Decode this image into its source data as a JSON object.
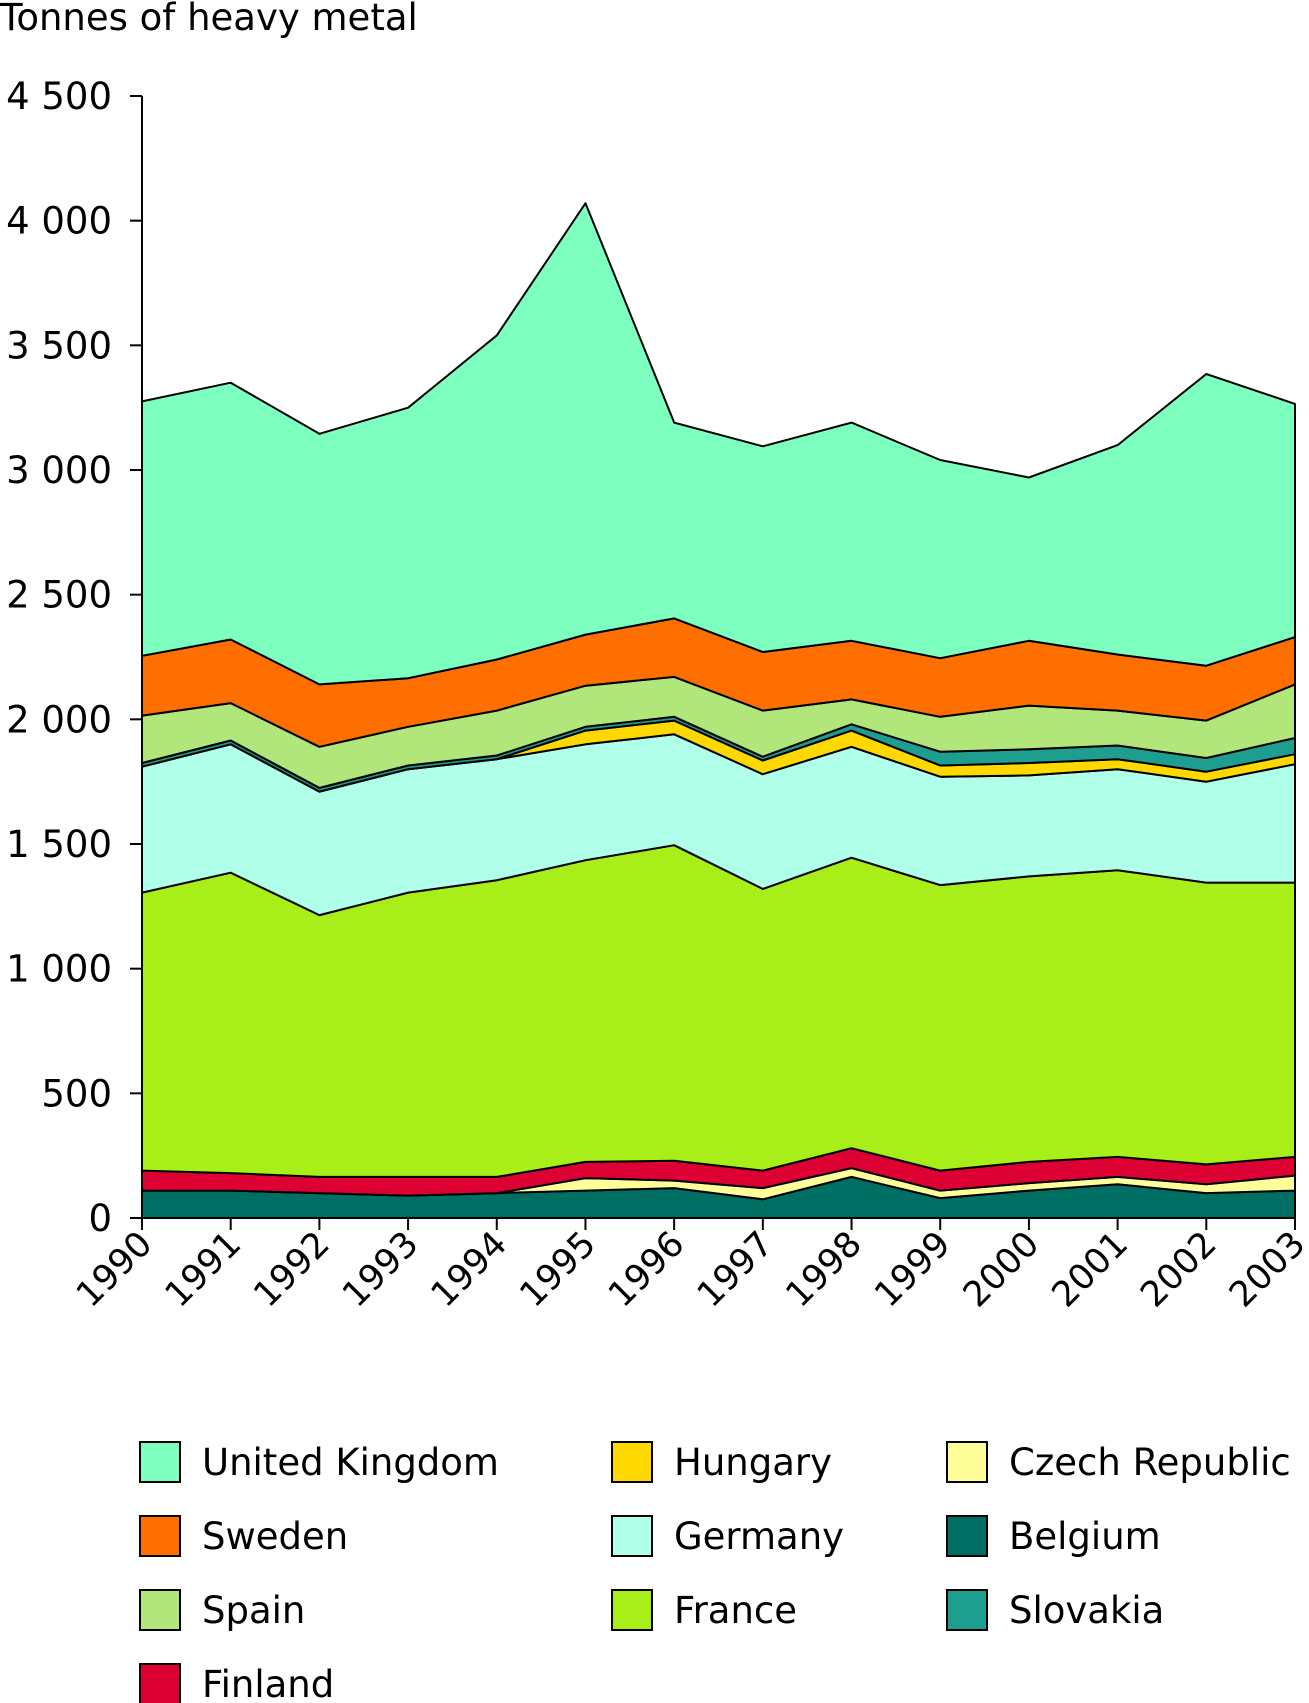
{
  "chart_data": {
    "type": "area",
    "stacked": true,
    "ylabel": "Tonnes of heavy metal",
    "xlabel": "",
    "ylim": [
      0,
      4500
    ],
    "yticks": [
      0,
      500,
      1000,
      1500,
      2000,
      2500,
      3000,
      3500,
      4000,
      4500
    ],
    "ytick_labels": [
      "0",
      "500",
      "1 000",
      "1 500",
      "2 000",
      "2 500",
      "3 000",
      "3 500",
      "4 000",
      "4 500"
    ],
    "x": [
      "1990",
      "1991",
      "1992",
      "1993",
      "1994",
      "1995",
      "1996",
      "1997",
      "1998",
      "1999",
      "2000",
      "2001",
      "2002",
      "2003"
    ],
    "grid": false,
    "legend_position": "bottom",
    "series": [
      {
        "name": "Belgium",
        "color": "#006f63",
        "values": [
          110,
          110,
          100,
          90,
          100,
          110,
          120,
          75,
          165,
          80,
          110,
          135,
          100,
          110
        ]
      },
      {
        "name": "Czech Republic",
        "color": "#ffff99",
        "values": [
          0,
          0,
          0,
          0,
          0,
          50,
          30,
          45,
          35,
          30,
          30,
          30,
          35,
          60
        ]
      },
      {
        "name": "Finland",
        "color": "#dd0033",
        "values": [
          80,
          70,
          65,
          75,
          65,
          65,
          80,
          70,
          80,
          80,
          85,
          80,
          80,
          75
        ]
      },
      {
        "name": "France",
        "color": "#a8ee18",
        "values": [
          1115,
          1205,
          1050,
          1140,
          1190,
          1210,
          1265,
          1130,
          1165,
          1145,
          1145,
          1150,
          1130,
          1100
        ]
      },
      {
        "name": "Germany",
        "color": "#b0ffe8",
        "values": [
          505,
          515,
          495,
          495,
          485,
          465,
          445,
          460,
          445,
          435,
          405,
          405,
          405,
          475
        ]
      },
      {
        "name": "Hungary",
        "color": "#ffd800",
        "values": [
          0,
          0,
          0,
          0,
          0,
          55,
          55,
          55,
          65,
          45,
          50,
          40,
          40,
          40
        ]
      },
      {
        "name": "Slovakia",
        "color": "#1e9e8e",
        "values": [
          15,
          15,
          15,
          15,
          15,
          15,
          15,
          15,
          25,
          55,
          55,
          55,
          55,
          65
        ]
      },
      {
        "name": "Spain",
        "color": "#b0e67a",
        "values": [
          190,
          150,
          165,
          155,
          180,
          165,
          160,
          185,
          100,
          140,
          175,
          140,
          150,
          215
        ]
      },
      {
        "name": "Sweden",
        "color": "#ff6f00",
        "values": [
          240,
          255,
          250,
          195,
          205,
          205,
          235,
          235,
          235,
          235,
          260,
          225,
          220,
          190
        ]
      },
      {
        "name": "United Kingdom",
        "color": "#7dffbf",
        "values": [
          1020,
          1030,
          1005,
          1085,
          1300,
          1730,
          785,
          825,
          875,
          795,
          655,
          840,
          1170,
          935
        ]
      }
    ],
    "legend_order": [
      "United Kingdom",
      "Hungary",
      "Czech Republic",
      "Sweden",
      "Germany",
      "Belgium",
      "Spain",
      "France",
      "Slovakia",
      "Finland"
    ]
  }
}
